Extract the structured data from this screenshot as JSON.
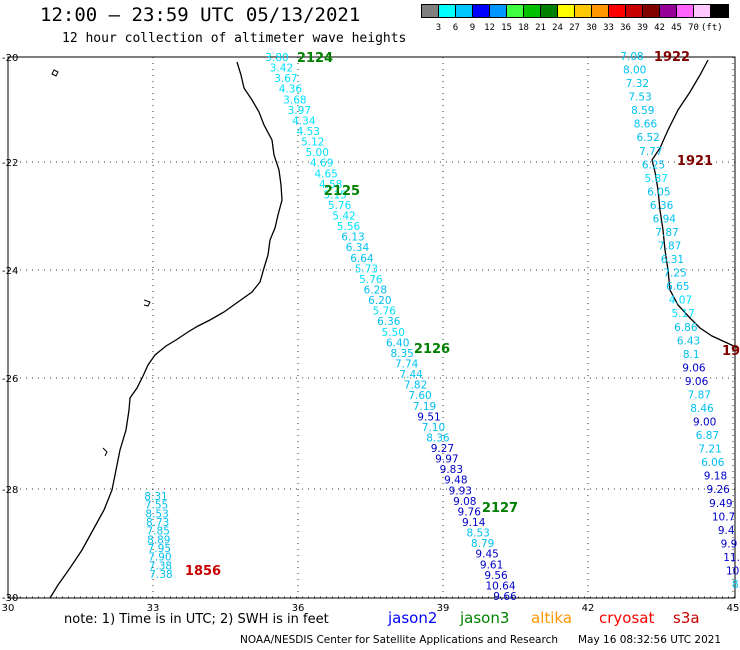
{
  "title": "12:00 – 23:59 UTC 05/13/2021",
  "subtitle": "12 hour collection of altimeter wave heights",
  "colorbar": {
    "colors": [
      "#7f7f7f",
      "#00ffff",
      "#00c8ff",
      "#0000ff",
      "#0096ff",
      "#40ff40",
      "#00c000",
      "#008000",
      "#ffff00",
      "#ffc800",
      "#ff9600",
      "#ff0000",
      "#c80000",
      "#800000",
      "#960096",
      "#ff64ff",
      "#ffc8ff",
      "#000000"
    ],
    "labels": [
      "3",
      "6",
      "9",
      "12",
      "15",
      "18",
      "21",
      "24",
      "27",
      "30",
      "33",
      "36",
      "39",
      "42",
      "45",
      "70",
      "(ft)"
    ]
  },
  "axes": {
    "lon_ticks": [
      "30",
      "33",
      "36",
      "39",
      "42",
      "45"
    ],
    "lat_ticks": [
      "-20",
      "-22",
      "-24",
      "-26",
      "-28",
      "-30"
    ]
  },
  "passes": [
    {
      "label": "2124",
      "color": "#008000"
    },
    {
      "label": "2125",
      "color": "#008000"
    },
    {
      "label": "2126",
      "color": "#008000"
    },
    {
      "label": "2127",
      "color": "#008000"
    },
    {
      "label": "1856",
      "color": "#c80000"
    },
    {
      "label": "1922",
      "color": "#800000"
    },
    {
      "label": "1921",
      "color": "#800000"
    },
    {
      "label": "19",
      "color": "#800000"
    }
  ],
  "track_center": [
    "3.80",
    "3.42",
    "3.67",
    "4.36",
    "3.68",
    "3.97",
    "4.34",
    "4.53",
    "5.12",
    "5.00",
    "4.69",
    "4.65",
    "4.58",
    "5.15",
    "5.76",
    "5.42",
    "5.56",
    "6.13",
    "6.34",
    "6.64",
    "5.73",
    "5.76",
    "6.28",
    "6.20",
    "5.76",
    "6.36",
    "5.50",
    "6.40",
    "8.35",
    "7.74",
    "7.44",
    "7.82",
    "7.60",
    "7.19",
    "9.51",
    "7.10",
    "8.36",
    "9.27",
    "9.97",
    "9.83",
    "9.48",
    "9.93",
    "9.08",
    "9.76",
    "9.14",
    "8.53",
    "8.79",
    "9.45",
    "9.61",
    "9.56",
    "10.64",
    "9.66"
  ],
  "track_right": [
    "7.08",
    "8.00",
    "7.32",
    "7.53",
    "8.59",
    "8.66",
    "6.52",
    "7.77",
    "6.25",
    "5.87",
    "6.05",
    "6.36",
    "6.94",
    "7.87",
    "7.87",
    "6.31",
    "7.25",
    "6.65",
    "4.07",
    "5.17",
    "6.86",
    "6.43",
    "8.1",
    "9.06",
    "9.06",
    "7.87",
    "8.46",
    "9.00",
    "6.87",
    "7.21",
    "6.06",
    "9.18",
    "9.26",
    "9.49",
    "10.7",
    "9.4",
    "9.9",
    "11.",
    "10.",
    "8."
  ],
  "track_left": [
    "8.31",
    "7.55",
    "8.53",
    "8.73",
    "7.85",
    "8.89",
    "7.95",
    "7.90",
    "7.38",
    "7.38"
  ],
  "note": "note: 1) Time is in UTC; 2) SWH is in feet",
  "satellites": [
    {
      "name": "jason2",
      "color": "#0000ff"
    },
    {
      "name": "jason3",
      "color": "#008000"
    },
    {
      "name": "altika",
      "color": "#ff9600"
    },
    {
      "name": "cryosat",
      "color": "#ff0000"
    },
    {
      "name": "s3a",
      "color": "#c80000"
    }
  ],
  "footer_left": "NOAA/NESDIS Center for Satellite Applications and Research",
  "footer_right": "May 16 08:32:56 UTC 2021"
}
